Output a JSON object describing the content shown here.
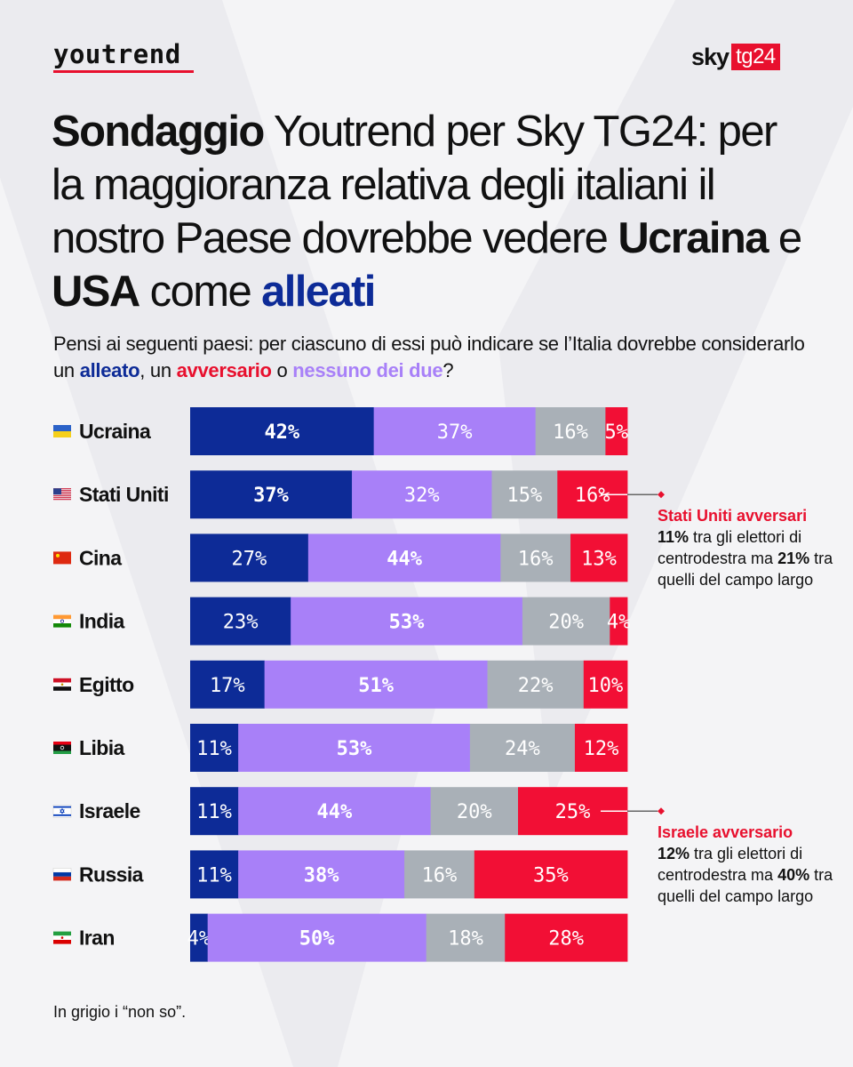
{
  "brand": {
    "youtrend": "youtrend",
    "sky": "sky",
    "tg24": "tg24"
  },
  "headline": {
    "p1": "Sondaggio",
    "p2": " Youtrend per Sky TG24: per la maggioranza relativa degli italiani il nostro Paese dovrebbe vedere ",
    "p3": "Ucraina",
    "p4": " e ",
    "p5": "USA",
    "p6": " come ",
    "p7": "alleati"
  },
  "question": {
    "q1": "Pensi ai seguenti paesi: per ciascuno di essi può indicare se l’Italia dovrebbe considerarlo un ",
    "q2": "alleato",
    "q3": ", un ",
    "q4": "avversario",
    "q5": " o ",
    "q6": "nessuno dei due",
    "q7": "?"
  },
  "colors": {
    "alleato": "#0d2b97",
    "nessuno": "#a880f8",
    "non_so": "#a9b0b7",
    "avversario": "#f20f35"
  },
  "chart_data": {
    "type": "bar",
    "orientation": "horizontal-stacked-100",
    "categories": [
      "Ucraina",
      "Stati Uniti",
      "Cina",
      "India",
      "Egitto",
      "Libia",
      "Israele",
      "Russia",
      "Iran"
    ],
    "flags": [
      "ukraine-flag",
      "usa-flag",
      "china-flag",
      "india-flag",
      "egypt-flag",
      "libya-flag",
      "israel-flag",
      "russia-flag",
      "iran-flag"
    ],
    "series": [
      {
        "name": "alleato",
        "values": [
          42,
          37,
          27,
          23,
          17,
          11,
          11,
          11,
          4
        ]
      },
      {
        "name": "nessuno dei due",
        "values": [
          37,
          32,
          44,
          53,
          51,
          53,
          44,
          38,
          50
        ]
      },
      {
        "name": "non so",
        "values": [
          16,
          15,
          16,
          20,
          22,
          24,
          20,
          16,
          18
        ]
      },
      {
        "name": "avversario",
        "values": [
          5,
          16,
          13,
          4,
          10,
          12,
          25,
          35,
          28
        ]
      }
    ],
    "bold_series_per_row": [
      0,
      0,
      1,
      1,
      1,
      1,
      1,
      1,
      1
    ],
    "xlim": [
      0,
      100
    ]
  },
  "annotations": {
    "usa": {
      "title": "Stati Uniti avversari",
      "l1b": "11%",
      "l1": " tra gli elettori di centrodestra ma ",
      "l2b": "21%",
      "l2": " tra quelli del campo largo"
    },
    "israel": {
      "title": "Israele avversario",
      "l1b": "12%",
      "l1": " tra gli elettori di centrodestra ma ",
      "l2b": "40%",
      "l2": " tra quelli del campo largo"
    }
  },
  "footnote": "In grigio i “non so”."
}
